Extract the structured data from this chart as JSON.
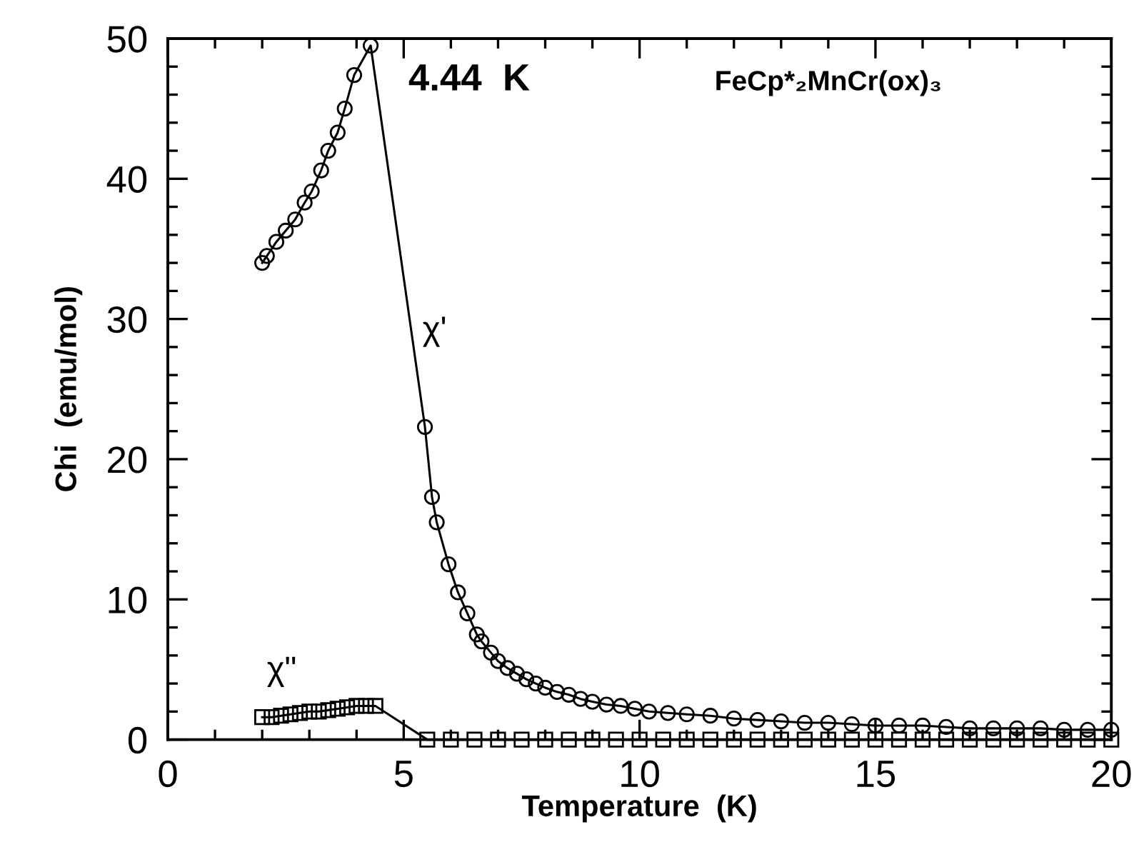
{
  "chart_data": {
    "type": "line",
    "xlabel": "Temperature  (K)",
    "ylabel": "Chi  (emu/mol)",
    "xlim": [
      0,
      20
    ],
    "xticks": [
      0,
      5,
      10,
      15,
      20
    ],
    "ylim": [
      0,
      50
    ],
    "yticks": [
      0,
      10,
      20,
      30,
      40,
      50
    ],
    "grid": false,
    "legend": false,
    "line_style": "solid",
    "annotations": [
      "4.44  K",
      "FeCp*₂MnCr(ox)₃"
    ],
    "series": [
      {
        "name": "χ'",
        "color": "#000000",
        "marker": "circle",
        "x": [
          2.0,
          2.1,
          2.3,
          2.5,
          2.7,
          2.9,
          3.05,
          3.25,
          3.4,
          3.6,
          3.75,
          3.95,
          4.3,
          5.45,
          5.6,
          5.7,
          5.95,
          6.15,
          6.35,
          6.55,
          6.65,
          6.85,
          7.0,
          7.2,
          7.4,
          7.6,
          7.8,
          8.0,
          8.25,
          8.5,
          8.75,
          9.0,
          9.3,
          9.6,
          9.9,
          10.2,
          10.6,
          11.0,
          11.5,
          12.0,
          12.5,
          13.0,
          13.5,
          14.0,
          14.5,
          15.0,
          15.5,
          16.0,
          16.5,
          17.0,
          17.5,
          18.0,
          18.5,
          19.0,
          19.5,
          20.0
        ],
        "values": [
          34.0,
          34.5,
          35.5,
          36.3,
          37.1,
          38.3,
          39.1,
          40.6,
          42.0,
          43.3,
          45.0,
          47.4,
          49.5,
          22.3,
          17.3,
          15.5,
          12.5,
          10.5,
          9.0,
          7.5,
          7.0,
          6.2,
          5.6,
          5.1,
          4.7,
          4.3,
          4.0,
          3.7,
          3.4,
          3.2,
          2.9,
          2.7,
          2.5,
          2.4,
          2.2,
          2.0,
          1.9,
          1.8,
          1.7,
          1.5,
          1.4,
          1.3,
          1.2,
          1.2,
          1.1,
          1.0,
          1.0,
          1.0,
          0.9,
          0.8,
          0.8,
          0.8,
          0.8,
          0.7,
          0.7,
          0.7
        ]
      },
      {
        "name": "χ\"",
        "color": "#000000",
        "marker": "square",
        "x": [
          2.0,
          2.2,
          2.4,
          2.6,
          2.8,
          3.0,
          3.2,
          3.4,
          3.6,
          3.8,
          4.0,
          4.2,
          4.4,
          5.5,
          6.0,
          6.5,
          7.0,
          7.5,
          8.0,
          8.5,
          9.0,
          9.5,
          10.0,
          10.5,
          11.0,
          11.5,
          12.0,
          12.5,
          13.0,
          13.5,
          14.0,
          14.5,
          15.0,
          15.5,
          16.0,
          16.5,
          17.0,
          17.5,
          18.0,
          18.5,
          19.0,
          19.5,
          20.0
        ],
        "values": [
          1.6,
          1.6,
          1.7,
          1.8,
          1.9,
          2.0,
          2.0,
          2.1,
          2.2,
          2.3,
          2.4,
          2.4,
          2.4,
          0,
          0,
          0,
          0,
          0,
          0,
          0,
          0,
          0,
          0,
          0,
          0,
          0,
          0,
          0,
          0,
          0,
          0,
          0,
          0,
          0,
          0,
          0,
          0,
          0,
          0,
          0,
          0,
          0,
          0
        ]
      }
    ]
  }
}
